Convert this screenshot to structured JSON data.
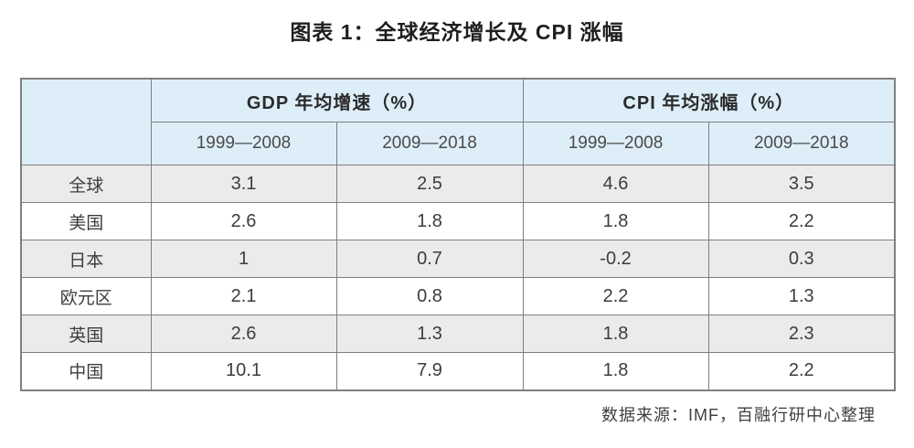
{
  "title": "图表 1：全球经济增长及 CPI 涨幅",
  "source": "数据来源：IMF，百融行研中心整理",
  "table": {
    "corner_label": "",
    "column_groups": [
      {
        "label": "GDP 年均增速（%）"
      },
      {
        "label": "CPI 年均涨幅（%）"
      }
    ],
    "period_headers": [
      "1999—2008",
      "2009—2018",
      "1999—2008",
      "2009—2018"
    ],
    "rows": [
      {
        "label": "全球",
        "values": [
          "3.1",
          "2.5",
          "4.6",
          "3.5"
        ]
      },
      {
        "label": "美国",
        "values": [
          "2.6",
          "1.8",
          "1.8",
          "2.2"
        ]
      },
      {
        "label": "日本",
        "values": [
          "1",
          "0.7",
          "-0.2",
          "0.3"
        ]
      },
      {
        "label": "欧元区",
        "values": [
          "2.1",
          "0.8",
          "2.2",
          "1.3"
        ]
      },
      {
        "label": "英国",
        "values": [
          "2.6",
          "1.3",
          "1.8",
          "2.3"
        ]
      },
      {
        "label": "中国",
        "values": [
          "10.1",
          "7.9",
          "1.8",
          "2.2"
        ]
      }
    ]
  },
  "colors": {
    "header_background": "#ddeef9",
    "row_alt_background": "#ebebeb",
    "border": "#7f7f7f",
    "text": "#3d3d3d"
  },
  "chart_data": {
    "type": "table",
    "title": "图表 1：全球经济增长及 CPI 涨幅",
    "categories": [
      "全球",
      "美国",
      "日本",
      "欧元区",
      "英国",
      "中国"
    ],
    "column_groups": [
      "GDP 年均增速（%）",
      "CPI 年均涨幅（%）"
    ],
    "series": [
      {
        "name": "GDP 年均增速（%）1999—2008",
        "values": [
          3.1,
          2.6,
          1,
          2.1,
          2.6,
          10.1
        ]
      },
      {
        "name": "GDP 年均增速（%）2009—2018",
        "values": [
          2.5,
          1.8,
          0.7,
          0.8,
          1.3,
          7.9
        ]
      },
      {
        "name": "CPI 年均涨幅（%）1999—2008",
        "values": [
          4.6,
          1.8,
          -0.2,
          2.2,
          1.8,
          1.8
        ]
      },
      {
        "name": "CPI 年均涨幅（%）2009—2018",
        "values": [
          3.5,
          2.2,
          0.3,
          1.3,
          2.3,
          2.2
        ]
      }
    ],
    "source": "数据来源：IMF，百融行研中心整理",
    "layout": {
      "grid": true,
      "legend_position": "none"
    }
  }
}
